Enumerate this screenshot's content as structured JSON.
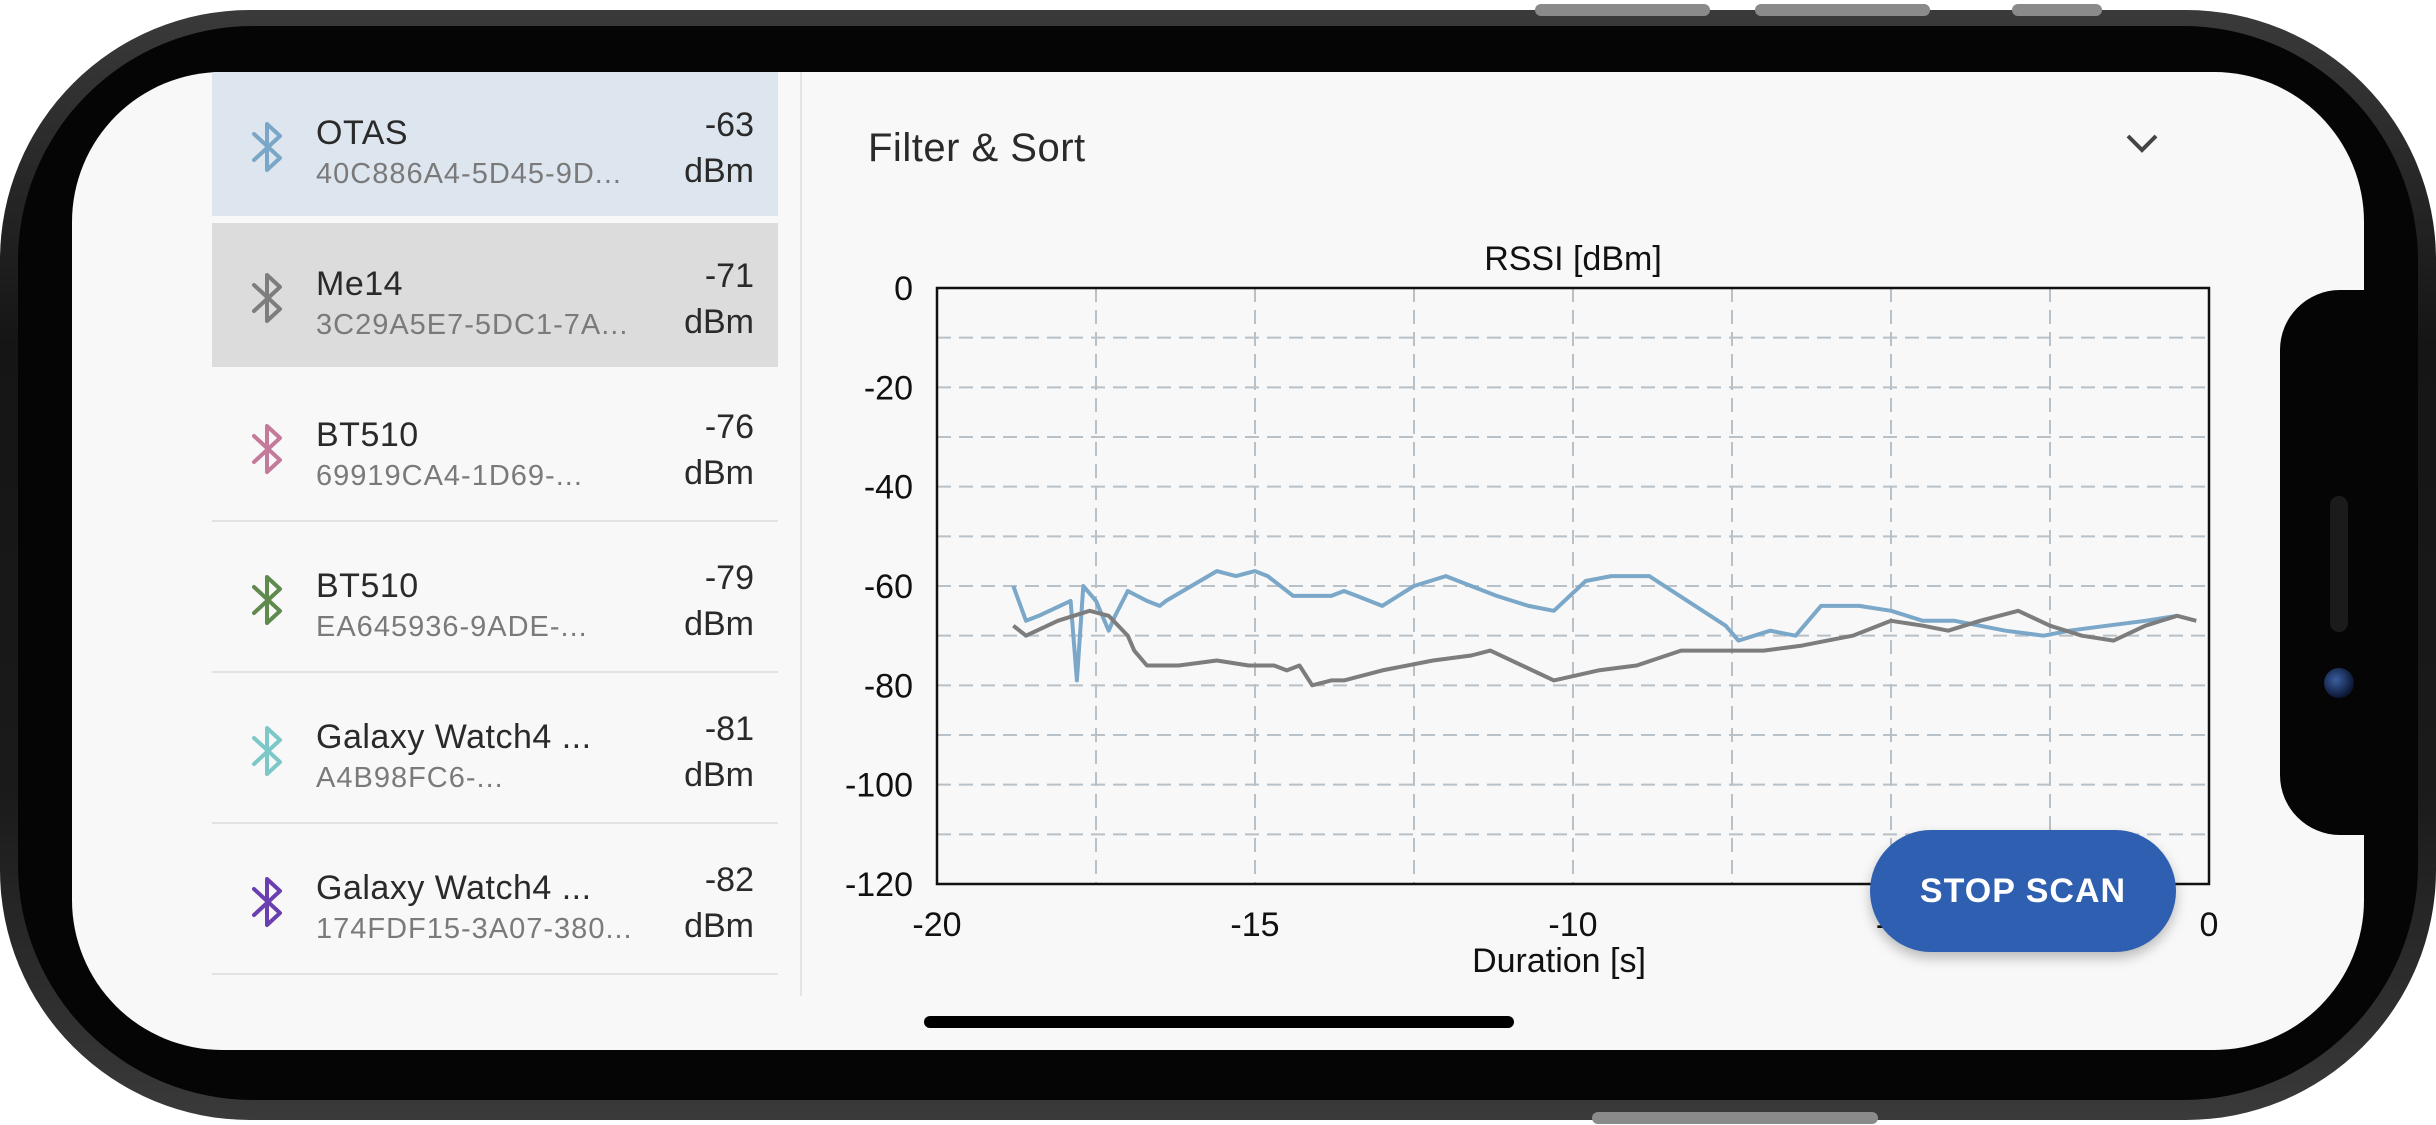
{
  "devices": [
    {
      "name": "OTAS",
      "address": "40C886A4-5D45-9D...",
      "rssi": "-63",
      "unit": "dBm",
      "icon": "bluetooth-icon",
      "color": "#7aa6c8",
      "background": "#dde6ef"
    },
    {
      "name": "Me14",
      "address": "3C29A5E7-5DC1-7A...",
      "rssi": "-71",
      "unit": "dBm",
      "icon": "bluetooth-icon",
      "color": "#7d7d7d",
      "background": "#dcdcdc"
    },
    {
      "name": "BT510",
      "address": "69919CA4-1D69-...",
      "rssi": "-76",
      "unit": "dBm",
      "icon": "bluetooth-icon",
      "color": "#c47a9a",
      "background": "#f8f8f8"
    },
    {
      "name": "BT510",
      "address": "EA645936-9ADE-...",
      "rssi": "-79",
      "unit": "dBm",
      "icon": "bluetooth-icon",
      "color": "#5e8a4e",
      "background": "#f8f8f8"
    },
    {
      "name": "Galaxy Watch4 ...",
      "address": "A4B98FC6-...",
      "rssi": "-81",
      "unit": "dBm",
      "icon": "bluetooth-icon",
      "color": "#7cc8c8",
      "background": "#f8f8f8"
    },
    {
      "name": "Galaxy Watch4 ...",
      "address": "174FDF15-3A07-380...",
      "rssi": "-82",
      "unit": "dBm",
      "icon": "bluetooth-icon",
      "color": "#6a3fb0",
      "background": "#f8f8f8"
    }
  ],
  "filter": {
    "title": "Filter & Sort",
    "icon": "chevron-down-icon"
  },
  "stop_scan_label": "STOP SCAN",
  "chart_data": {
    "type": "line",
    "title": "RSSI [dBm]",
    "xlabel": "Duration [s]",
    "ylabel": "",
    "xlim": [
      -20,
      0
    ],
    "ylim": [
      -120,
      0
    ],
    "x_ticks": [
      -20,
      -15,
      -10,
      -5,
      0
    ],
    "x_tick_labels": [
      "-20",
      "-15",
      "-10",
      "-5",
      "0"
    ],
    "y_ticks": [
      0,
      -20,
      -40,
      -60,
      -80,
      -100,
      -120
    ],
    "y_tick_labels": [
      "0",
      "-20",
      "-40",
      "-60",
      "-80",
      "-100",
      "-120"
    ],
    "grid": true,
    "series": [
      {
        "color": "#7ba7c8",
        "x": [
          -18.8,
          -18.6,
          -18.4,
          -17.9,
          -17.8,
          -17.7,
          -17.5,
          -17.3,
          -17.2,
          -17.0,
          -16.7,
          -16.5,
          -16.4,
          -16.0,
          -15.6,
          -15.3,
          -15.0,
          -14.8,
          -14.4,
          -13.8,
          -13.6,
          -13.4,
          -13.0,
          -12.5,
          -12.0,
          -11.6,
          -11.2,
          -10.7,
          -10.3,
          -9.8,
          -9.4,
          -8.8,
          -7.6,
          -7.4,
          -6.9,
          -6.5,
          -6.1,
          -5.5,
          -5.0,
          -4.5,
          -4.0,
          -3.2,
          -2.6,
          -2.2,
          -1.6,
          -1.0,
          -0.5
        ],
        "y": [
          -60,
          -67,
          -66,
          -63,
          -79,
          -60,
          -63,
          -69,
          -66,
          -61,
          -63,
          -64,
          -63,
          -60,
          -57,
          -58,
          -57,
          -58,
          -62,
          -62,
          -61,
          -62,
          -64,
          -60,
          -58,
          -60,
          -62,
          -64,
          -65,
          -59,
          -58,
          -58,
          -68,
          -71,
          -69,
          -70,
          -64,
          -64,
          -65,
          -67,
          -67,
          -69,
          -70,
          -69,
          -68,
          -67,
          -66
        ]
      },
      {
        "color": "#7d7d7d",
        "x": [
          -18.8,
          -18.6,
          -18.1,
          -17.6,
          -17.3,
          -17.0,
          -16.9,
          -16.7,
          -16.2,
          -15.6,
          -15.1,
          -14.7,
          -14.5,
          -14.3,
          -14.1,
          -13.8,
          -13.6,
          -13.0,
          -12.2,
          -11.6,
          -11.3,
          -10.3,
          -9.6,
          -9.0,
          -8.3,
          -7.0,
          -6.4,
          -6.0,
          -5.6,
          -5.0,
          -4.5,
          -4.1,
          -3.6,
          -3.0,
          -2.5,
          -2.0,
          -1.5,
          -1.0,
          -0.5,
          -0.2
        ],
        "y": [
          -68,
          -70,
          -67,
          -65,
          -66,
          -70,
          -73,
          -76,
          -76,
          -75,
          -76,
          -76,
          -77,
          -76,
          -80,
          -79,
          -79,
          -77,
          -75,
          -74,
          -73,
          -79,
          -77,
          -76,
          -73,
          -73,
          -72,
          -71,
          -70,
          -67,
          -68,
          -69,
          -67,
          -65,
          -68,
          -70,
          -71,
          -68,
          -66,
          -67
        ]
      }
    ]
  }
}
